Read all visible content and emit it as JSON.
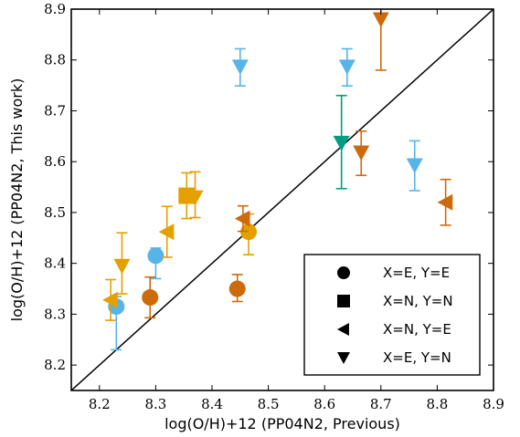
{
  "chart_data": {
    "type": "scatter",
    "title": "",
    "xlabel": "log(O/H)+12 (PP04N2, Previous)",
    "ylabel": "log(O/H)+12 (PP04N2, This work)",
    "xlim": [
      8.15,
      8.9
    ],
    "ylim": [
      8.15,
      8.9
    ],
    "xticks": [
      8.2,
      8.3,
      8.4,
      8.5,
      8.6,
      8.7,
      8.8,
      8.9
    ],
    "yticks": [
      8.2,
      8.3,
      8.4,
      8.5,
      8.6,
      8.7,
      8.8,
      8.9
    ],
    "xtick_labels": [
      "8.2",
      "8.3",
      "8.4",
      "8.5",
      "8.6",
      "8.7",
      "8.8",
      "8.9"
    ],
    "ytick_labels": [
      "8.2",
      "8.3",
      "8.4",
      "8.5",
      "8.6",
      "8.7",
      "8.8",
      "8.9"
    ],
    "grid": false,
    "reference_line": "y = x",
    "legend_position": "bottom-right",
    "legend": [
      {
        "marker": "circle",
        "label": "X=E, Y=E"
      },
      {
        "marker": "square",
        "label": "X=N, Y=N"
      },
      {
        "marker": "triangle-left",
        "label": "X=N, Y=E"
      },
      {
        "marker": "triangle-down",
        "label": "X=E, Y=N"
      }
    ],
    "colors": {
      "sky": "#56b4e9",
      "orange": "#e69f00",
      "vermilion": "#cc6a0c",
      "teal": "#009e82"
    },
    "points": [
      {
        "x": 8.23,
        "y": 8.315,
        "yerr_low": 0.085,
        "yerr_high": 0.02,
        "marker": "circle",
        "color": "sky"
      },
      {
        "x": 8.3,
        "y": 8.415,
        "yerr_low": 0.045,
        "yerr_high": 0.015,
        "marker": "circle",
        "color": "sky"
      },
      {
        "x": 8.29,
        "y": 8.333,
        "yerr_low": 0.04,
        "yerr_high": 0.04,
        "marker": "circle",
        "color": "vermilion"
      },
      {
        "x": 8.445,
        "y": 8.35,
        "yerr_low": 0.025,
        "yerr_high": 0.028,
        "marker": "circle",
        "color": "vermilion"
      },
      {
        "x": 8.465,
        "y": 8.462,
        "yerr_low": 0.045,
        "yerr_high": 0.035,
        "marker": "circle",
        "color": "orange"
      },
      {
        "x": 8.355,
        "y": 8.533,
        "yerr_low": 0.045,
        "yerr_high": 0.045,
        "marker": "square",
        "color": "orange"
      },
      {
        "x": 8.22,
        "y": 8.328,
        "yerr_low": 0.04,
        "yerr_high": 0.04,
        "marker": "triangle-left",
        "color": "orange"
      },
      {
        "x": 8.32,
        "y": 8.462,
        "yerr_low": 0.05,
        "yerr_high": 0.05,
        "marker": "triangle-left",
        "color": "orange"
      },
      {
        "x": 8.455,
        "y": 8.488,
        "yerr_low": 0.025,
        "yerr_high": 0.025,
        "marker": "triangle-left",
        "color": "vermilion"
      },
      {
        "x": 8.815,
        "y": 8.52,
        "yerr_low": 0.045,
        "yerr_high": 0.045,
        "marker": "triangle-left",
        "color": "vermilion"
      },
      {
        "x": 8.24,
        "y": 8.395,
        "yerr_low": 0.055,
        "yerr_high": 0.065,
        "marker": "triangle-down",
        "color": "orange"
      },
      {
        "x": 8.37,
        "y": 8.53,
        "yerr_low": 0.04,
        "yerr_high": 0.05,
        "marker": "triangle-down",
        "color": "orange"
      },
      {
        "x": 8.45,
        "y": 8.787,
        "yerr_low": 0.038,
        "yerr_high": 0.035,
        "marker": "triangle-down",
        "color": "sky"
      },
      {
        "x": 8.64,
        "y": 8.787,
        "yerr_low": 0.038,
        "yerr_high": 0.035,
        "marker": "triangle-down",
        "color": "sky"
      },
      {
        "x": 8.76,
        "y": 8.593,
        "yerr_low": 0.05,
        "yerr_high": 0.048,
        "marker": "triangle-down",
        "color": "sky"
      },
      {
        "x": 8.63,
        "y": 8.637,
        "yerr_low": 0.09,
        "yerr_high": 0.093,
        "marker": "triangle-down",
        "color": "teal"
      },
      {
        "x": 8.665,
        "y": 8.618,
        "yerr_low": 0.045,
        "yerr_high": 0.042,
        "marker": "triangle-down",
        "color": "vermilion"
      },
      {
        "x": 8.7,
        "y": 8.88,
        "yerr_low": 0.1,
        "yerr_high": 0.03,
        "marker": "triangle-down",
        "color": "vermilion"
      }
    ]
  }
}
